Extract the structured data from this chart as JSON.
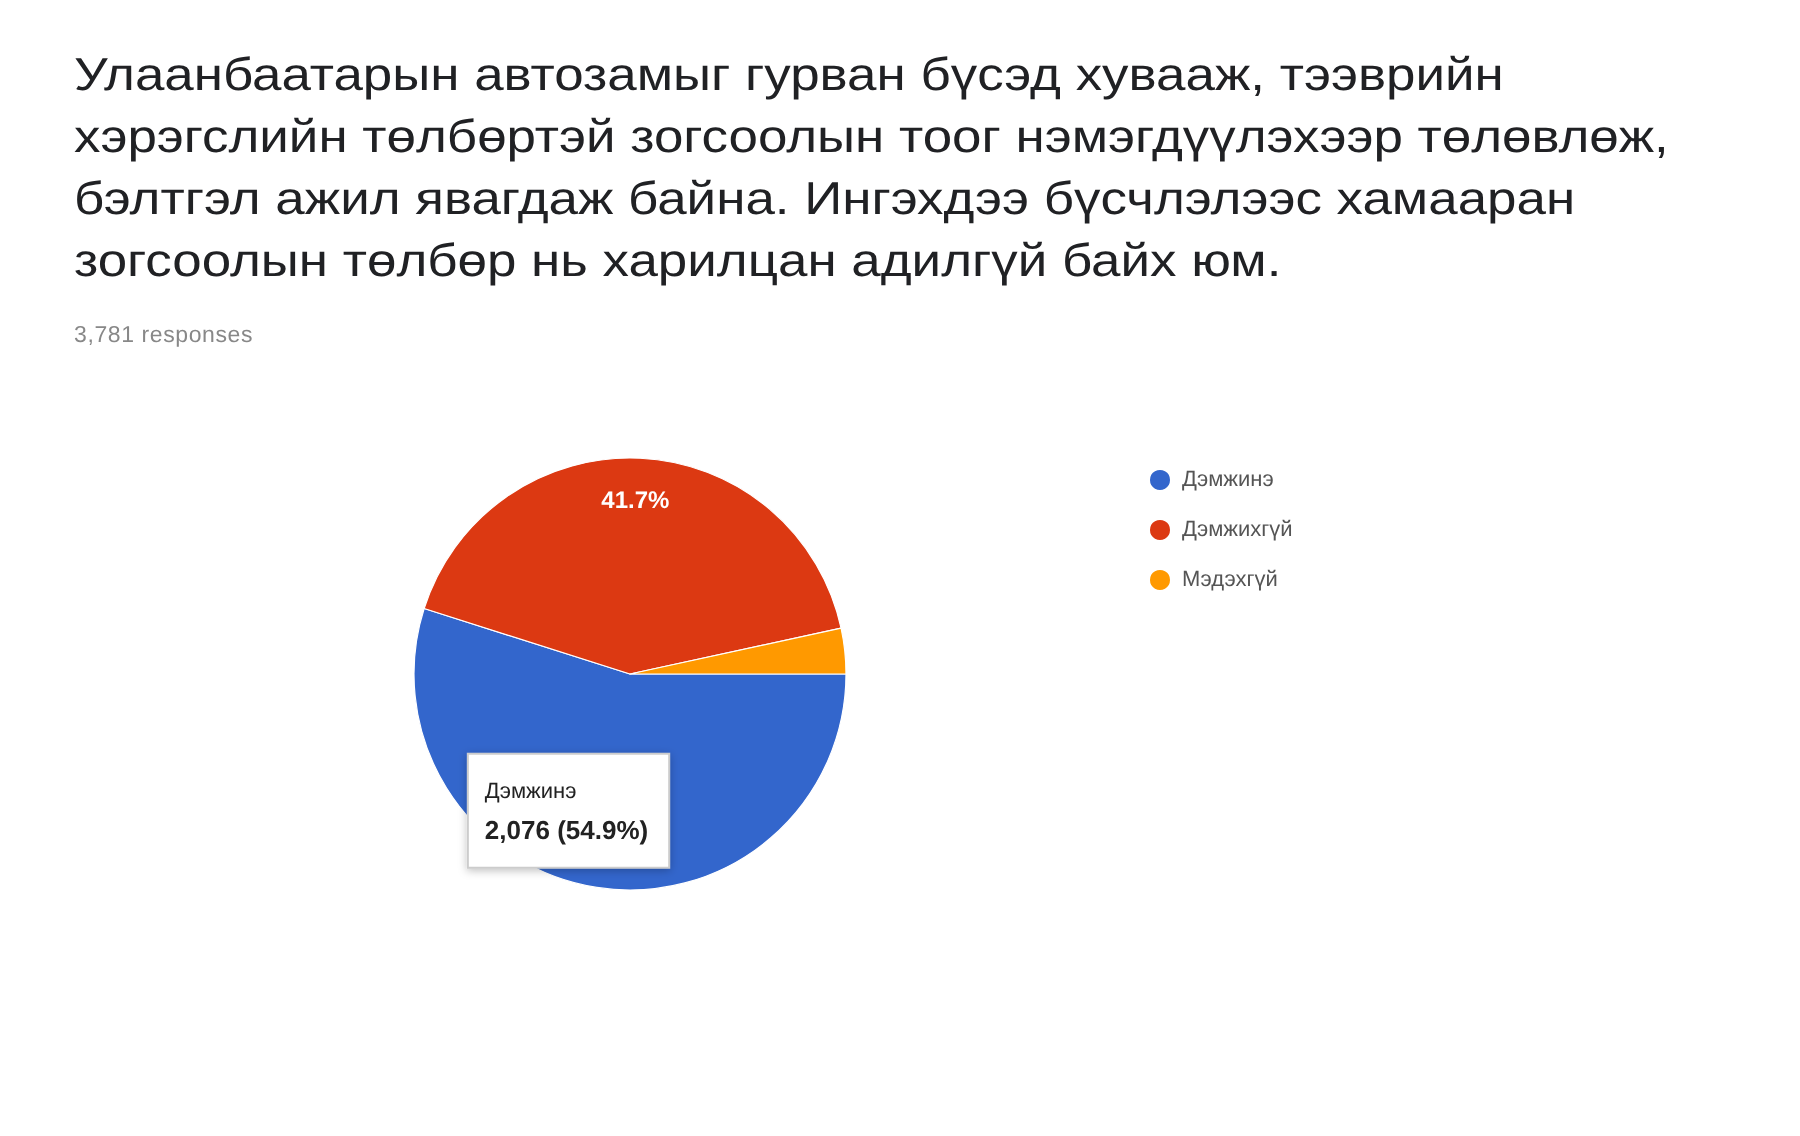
{
  "chart_data": {
    "type": "pie",
    "title": "Улаанбаатарын автозамыг гурван бүсэд хувааж, тээврийн хэрэгслийн төлбөртэй зогсоолын тоог нэмэгдүүлэхээр төлөвлөж, бэлтгэл ажил явагдаж байна. Ингэхдээ бүсчлэлээс хамааран зогсоолын төлбөр нь харилцан адилгүй байх юм.",
    "subtitle": "3,781 responses",
    "categories": [
      "Дэмжинэ",
      "Дэмжихгүй",
      "Мэдэхгүй"
    ],
    "values": [
      54.9,
      41.7,
      3.4
    ],
    "colors": [
      "#3366cc",
      "#dc3912",
      "#ff9900"
    ],
    "value_labels": [
      "2,076 (54.9%)",
      "41.7%",
      null
    ],
    "legend": "top right"
  }
}
